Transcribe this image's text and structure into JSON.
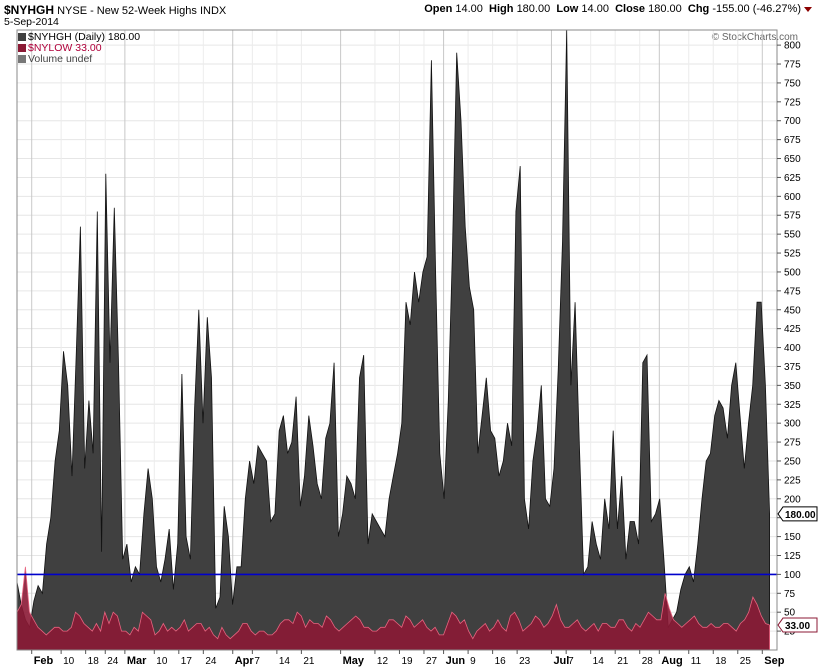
{
  "header": {
    "symbol": "$NYHGH",
    "description": "NYSE - New 52-Week Highs",
    "exchange": "INDX",
    "date": "5-Sep-2014",
    "open_label": "Open",
    "open_value": "14.00",
    "high_label": "High",
    "high_value": "180.00",
    "low_label": "Low",
    "low_value": "14.00",
    "close_label": "Close",
    "close_value": "180.00",
    "chg_label": "Chg",
    "chg_value": "-155.00 (-46.27%)"
  },
  "legend": {
    "nyhgh": "$NYHGH (Daily) 180.00",
    "nylow": "$NYLOW 33.00",
    "volume": "Volume undef"
  },
  "watermark": "© StockCharts.com",
  "colors": {
    "highs_fill": "#404040",
    "lows_fill": "#8b1a35",
    "lows_spike": "#e8637f",
    "hline": "#0000cc"
  },
  "chart_data": {
    "type": "area",
    "ylim": [
      0,
      820
    ],
    "y_ticks": [
      25,
      50,
      75,
      100,
      125,
      150,
      175,
      200,
      225,
      250,
      275,
      300,
      325,
      350,
      375,
      400,
      425,
      450,
      475,
      500,
      525,
      550,
      575,
      600,
      625,
      650,
      675,
      700,
      725,
      750,
      775,
      800
    ],
    "x_ticks": [
      {
        "label": "Feb",
        "day": 0,
        "month": true
      },
      {
        "label": "10",
        "day": 6
      },
      {
        "label": "18",
        "day": 11
      },
      {
        "label": "24",
        "day": 15
      },
      {
        "label": "Mar",
        "day": 19,
        "month": true
      },
      {
        "label": "10",
        "day": 25
      },
      {
        "label": "17",
        "day": 30
      },
      {
        "label": "24",
        "day": 35
      },
      {
        "label": "Apr",
        "day": 41,
        "month": true
      },
      {
        "label": "7",
        "day": 45
      },
      {
        "label": "14",
        "day": 50
      },
      {
        "label": "21",
        "day": 55
      },
      {
        "label": "May",
        "day": 63,
        "month": true
      },
      {
        "label": "12",
        "day": 70
      },
      {
        "label": "19",
        "day": 75
      },
      {
        "label": "27",
        "day": 80
      },
      {
        "label": "Jun",
        "day": 84,
        "month": true
      },
      {
        "label": "9",
        "day": 89
      },
      {
        "label": "16",
        "day": 94
      },
      {
        "label": "23",
        "day": 99
      },
      {
        "label": "Jul",
        "day": 106,
        "month": true
      },
      {
        "label": "7",
        "day": 109
      },
      {
        "label": "14",
        "day": 114
      },
      {
        "label": "21",
        "day": 119
      },
      {
        "label": "28",
        "day": 124
      },
      {
        "label": "Aug",
        "day": 128,
        "month": true
      },
      {
        "label": "11",
        "day": 134
      },
      {
        "label": "18",
        "day": 139
      },
      {
        "label": "25",
        "day": 144
      },
      {
        "label": "Sep",
        "day": 149,
        "month": true
      }
    ],
    "x_range": [
      -3,
      152
    ],
    "reference_line": 100,
    "last_high": "180.00",
    "last_low": "33.00",
    "series": [
      {
        "values": [
          90,
          60,
          40,
          30,
          65,
          85,
          75,
          140,
          175,
          250,
          290,
          395,
          350,
          230,
          390,
          560,
          240,
          330,
          260,
          580,
          130,
          630,
          380,
          585,
          380,
          120,
          140,
          90,
          110,
          100,
          180,
          240,
          200,
          110,
          90,
          120,
          160,
          80,
          140,
          365,
          150,
          120,
          320,
          450,
          300,
          440,
          360,
          55,
          70,
          190,
          150,
          60,
          110,
          110,
          200,
          250,
          220,
          270,
          260,
          250,
          170,
          180,
          290,
          310,
          260,
          275,
          335,
          190,
          230,
          310,
          270,
          220,
          200,
          280,
          300,
          380,
          150,
          180,
          230,
          220,
          200,
          360,
          390,
          140,
          180,
          170,
          160,
          150,
          200,
          230,
          260,
          300,
          460,
          430,
          500,
          460,
          500,
          520,
          780,
          500,
          260,
          200,
          330,
          530,
          790,
          700,
          560,
          480,
          450,
          260,
          310,
          360,
          290,
          280,
          230,
          250,
          300,
          270,
          580,
          640,
          200,
          160,
          250,
          290,
          350,
          200,
          190,
          240,
          370,
          540,
          820,
          350,
          460,
          270,
          100,
          110,
          170,
          140,
          120,
          200,
          160,
          290,
          160,
          230,
          120,
          170,
          170,
          140,
          380,
          390,
          170,
          180,
          200,
          120,
          30,
          40,
          50,
          80,
          100,
          110,
          90,
          140,
          200,
          250,
          260,
          310,
          330,
          320,
          280,
          350,
          380,
          310,
          240,
          300,
          350,
          460,
          460,
          350,
          180
        ]
      },
      {
        "values": [
          50,
          60,
          110,
          50,
          40,
          30,
          25,
          20,
          25,
          30,
          30,
          25,
          25,
          30,
          50,
          45,
          35,
          30,
          25,
          35,
          25,
          50,
          35,
          50,
          45,
          25,
          25,
          20,
          30,
          25,
          50,
          45,
          40,
          20,
          25,
          35,
          25,
          30,
          25,
          30,
          40,
          25,
          30,
          35,
          35,
          25,
          30,
          20,
          15,
          30,
          20,
          15,
          20,
          25,
          35,
          35,
          25,
          20,
          25,
          25,
          20,
          20,
          25,
          35,
          40,
          40,
          35,
          50,
          45,
          30,
          40,
          35,
          35,
          30,
          45,
          40,
          30,
          25,
          30,
          35,
          40,
          45,
          40,
          30,
          30,
          25,
          25,
          30,
          30,
          40,
          40,
          35,
          30,
          45,
          40,
          30,
          35,
          40,
          30,
          25,
          30,
          20,
          20,
          35,
          50,
          45,
          35,
          40,
          25,
          15,
          25,
          30,
          35,
          25,
          30,
          40,
          30,
          25,
          45,
          50,
          40,
          25,
          30,
          35,
          45,
          40,
          30,
          35,
          45,
          60,
          40,
          30,
          30,
          35,
          40,
          30,
          25,
          30,
          35,
          25,
          35,
          35,
          30,
          30,
          40,
          40,
          30,
          25,
          35,
          30,
          40,
          50,
          45,
          40,
          40,
          75,
          55,
          40,
          35,
          30,
          35,
          40,
          45,
          35,
          30,
          30,
          35,
          30,
          30,
          35,
          35,
          30,
          25,
          35,
          40,
          50,
          70,
          60,
          45,
          35,
          33
        ]
      }
    ]
  }
}
